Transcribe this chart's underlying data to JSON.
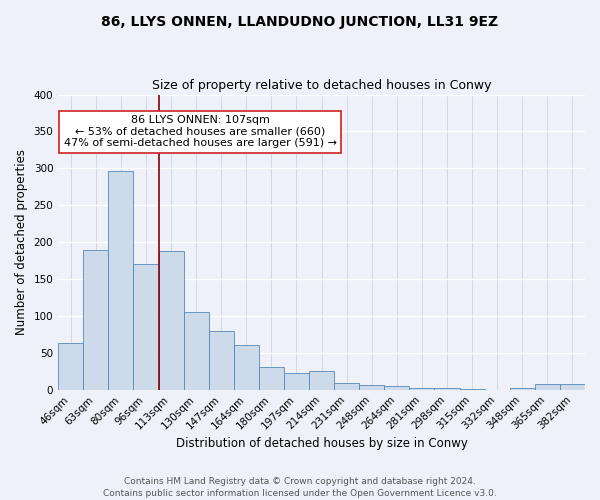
{
  "title": "86, LLYS ONNEN, LLANDUDNO JUNCTION, LL31 9EZ",
  "subtitle": "Size of property relative to detached houses in Conwy",
  "xlabel": "Distribution of detached houses by size in Conwy",
  "ylabel": "Number of detached properties",
  "bar_labels": [
    "46sqm",
    "63sqm",
    "80sqm",
    "96sqm",
    "113sqm",
    "130sqm",
    "147sqm",
    "164sqm",
    "180sqm",
    "197sqm",
    "214sqm",
    "231sqm",
    "248sqm",
    "264sqm",
    "281sqm",
    "298sqm",
    "315sqm",
    "332sqm",
    "348sqm",
    "365sqm",
    "382sqm"
  ],
  "bar_values": [
    63,
    190,
    297,
    170,
    188,
    105,
    80,
    60,
    31,
    22,
    25,
    9,
    6,
    5,
    2,
    2,
    1,
    0,
    3,
    8,
    8
  ],
  "bar_color": "#ccdaea",
  "bar_edge_color": "#5588bb",
  "vline_pos": 3.5,
  "vline_color": "#8b0000",
  "annotation_line1": "86 LLYS ONNEN: 107sqm",
  "annotation_line2": "← 53% of detached houses are smaller (660)",
  "annotation_line3": "47% of semi-detached houses are larger (591) →",
  "ylim": [
    0,
    400
  ],
  "yticks": [
    0,
    50,
    100,
    150,
    200,
    250,
    300,
    350,
    400
  ],
  "footer1": "Contains HM Land Registry data © Crown copyright and database right 2024.",
  "footer2": "Contains public sector information licensed under the Open Government Licence v3.0.",
  "bg_color": "#eef2f8",
  "plot_bg_color": "#eef2f8",
  "title_fontsize": 10,
  "subtitle_fontsize": 9,
  "axis_label_fontsize": 8.5,
  "tick_fontsize": 7.5,
  "footer_fontsize": 6.5,
  "annot_fontsize": 8
}
